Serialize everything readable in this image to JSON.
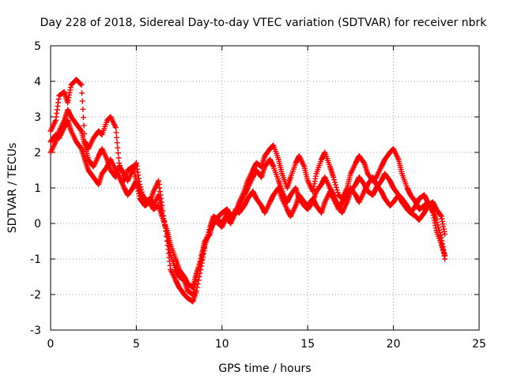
{
  "chart_data": {
    "type": "scatter",
    "title": "Day 228 of 2018, Sidereal Day-to-day VTEC variation (SDTVAR) for receiver nbrk",
    "xlabel": "GPS time / hours",
    "ylabel": "SDTVAR / TECUs",
    "xlim": [
      0,
      25
    ],
    "ylim": [
      -3,
      5
    ],
    "xticks": [
      "0",
      "5",
      "10",
      "15",
      "20",
      "25"
    ],
    "yticks": [
      "-3",
      "-2",
      "-1",
      "0",
      "1",
      "2",
      "3",
      "4",
      "5"
    ],
    "grid": true,
    "marker": "plus",
    "series": [
      {
        "name": "SDTVAR",
        "color": "#ff0000",
        "x": [
          0.0,
          0.3,
          0.5,
          0.8,
          1.0,
          1.2,
          1.5,
          1.8,
          2.0,
          2.2,
          2.5,
          2.8,
          3.0,
          3.3,
          3.5,
          3.8,
          4.0,
          4.3,
          4.5,
          4.8,
          5.0,
          5.2,
          5.5,
          5.8,
          6.0,
          6.3,
          6.5,
          6.8,
          7.0,
          7.3,
          7.5,
          7.8,
          8.0,
          8.3,
          8.5,
          8.8,
          9.0,
          9.3,
          9.5,
          9.8,
          10.0,
          10.3,
          10.5,
          10.8,
          11.0,
          11.3,
          11.5,
          11.8,
          12.0,
          12.3,
          12.5,
          12.8,
          13.0,
          13.3,
          13.5,
          13.8,
          14.0,
          14.3,
          14.5,
          14.8,
          15.0,
          15.3,
          15.5,
          15.8,
          16.0,
          16.3,
          16.5,
          16.8,
          17.0,
          17.3,
          17.5,
          17.8,
          18.0,
          18.3,
          18.5,
          18.8,
          19.0,
          19.3,
          19.5,
          19.8,
          20.0,
          20.3,
          20.5,
          20.8,
          21.0,
          21.3,
          21.5,
          21.8,
          22.0,
          22.3,
          22.5,
          22.8,
          23.0
        ],
        "y": [
          2.6,
          2.9,
          3.6,
          3.7,
          3.4,
          3.9,
          4.05,
          3.9,
          2.3,
          2.1,
          2.4,
          2.6,
          2.5,
          2.9,
          3.0,
          2.7,
          1.7,
          1.2,
          1.5,
          1.6,
          1.2,
          0.7,
          0.5,
          0.6,
          0.9,
          1.2,
          0.5,
          -0.5,
          -1.3,
          -1.6,
          -1.8,
          -2.0,
          -2.1,
          -2.2,
          -1.9,
          -1.2,
          -0.6,
          -0.2,
          0.0,
          0.2,
          0.3,
          0.4,
          0.2,
          0.3,
          0.6,
          0.9,
          1.2,
          1.5,
          1.7,
          1.6,
          1.9,
          2.1,
          2.2,
          1.8,
          1.4,
          1.0,
          1.3,
          1.7,
          1.9,
          1.6,
          1.2,
          0.9,
          1.4,
          1.8,
          2.0,
          1.6,
          1.3,
          0.8,
          0.7,
          1.0,
          1.4,
          1.7,
          1.9,
          1.7,
          1.4,
          1.2,
          1.3,
          1.6,
          1.8,
          2.0,
          2.1,
          1.8,
          1.4,
          1.0,
          0.8,
          0.6,
          0.4,
          0.5,
          0.6,
          0.3,
          -0.2,
          -0.6,
          -0.9
        ]
      },
      {
        "name": "SDTVAR",
        "color": "#ff0000",
        "x": [
          0.0,
          0.3,
          0.5,
          0.8,
          1.0,
          1.2,
          1.5,
          1.8,
          2.0,
          2.2,
          2.5,
          2.8,
          3.0,
          3.3,
          3.5,
          3.8,
          4.0,
          4.3,
          4.5,
          4.8,
          5.0,
          5.2,
          5.5,
          5.8,
          6.0,
          6.3,
          6.5,
          6.8,
          7.0,
          7.3,
          7.5,
          7.8,
          8.0,
          8.3,
          8.5,
          8.8,
          9.0,
          9.3,
          9.5,
          9.8,
          10.0,
          10.3,
          10.5,
          10.8,
          11.0,
          11.3,
          11.5,
          11.8,
          12.0,
          12.3,
          12.5,
          12.8,
          13.0,
          13.3,
          13.5,
          13.8,
          14.0,
          14.3,
          14.5,
          14.8,
          15.0,
          15.3,
          15.5,
          15.8,
          16.0,
          16.3,
          16.5,
          16.8,
          17.0,
          17.3,
          17.5,
          17.8,
          18.0,
          18.3,
          18.5,
          18.8,
          19.0,
          19.3,
          19.5,
          19.8,
          20.0,
          20.3,
          20.5,
          20.8,
          21.0,
          21.3,
          21.5,
          21.8,
          22.0,
          22.3,
          22.5,
          22.8,
          23.0
        ],
        "y": [
          2.0,
          2.3,
          2.6,
          2.9,
          3.2,
          3.0,
          2.8,
          2.6,
          2.2,
          1.8,
          1.6,
          1.9,
          2.1,
          1.8,
          1.5,
          1.3,
          1.6,
          1.4,
          1.2,
          1.5,
          1.7,
          1.1,
          0.6,
          0.7,
          0.5,
          0.8,
          0.3,
          -0.3,
          -0.9,
          -1.3,
          -1.5,
          -1.6,
          -1.9,
          -2.0,
          -1.5,
          -0.9,
          -0.5,
          -0.3,
          0.1,
          0.0,
          -0.1,
          0.2,
          0.0,
          0.3,
          0.5,
          0.8,
          1.0,
          1.3,
          1.5,
          1.3,
          1.6,
          1.8,
          1.6,
          1.2,
          0.9,
          0.6,
          0.8,
          1.0,
          0.7,
          0.5,
          0.4,
          0.6,
          0.9,
          1.1,
          1.3,
          1.0,
          0.8,
          0.5,
          0.3,
          0.6,
          0.9,
          1.1,
          1.3,
          1.1,
          0.9,
          0.8,
          1.0,
          1.2,
          1.4,
          1.2,
          1.0,
          0.8,
          0.6,
          0.4,
          0.3,
          0.2,
          0.1,
          0.3,
          0.5,
          0.6,
          0.4,
          0.2,
          -0.3
        ]
      },
      {
        "name": "SDTVAR",
        "color": "#ff0000",
        "x": [
          0.0,
          0.3,
          0.5,
          0.8,
          1.0,
          1.2,
          1.5,
          1.8,
          2.0,
          2.2,
          2.5,
          2.8,
          3.0,
          3.3,
          3.5,
          3.8,
          4.0,
          4.3,
          4.5,
          4.8,
          5.0,
          5.2,
          5.5,
          5.8,
          6.0,
          6.3,
          6.5,
          6.8,
          7.0,
          7.3,
          7.5,
          7.8,
          8.0,
          8.3,
          8.5,
          8.8,
          9.0,
          9.3,
          9.5,
          9.8,
          10.0,
          10.3,
          10.5,
          10.8,
          11.0,
          11.3,
          11.5,
          11.8,
          12.0,
          12.3,
          12.5,
          12.8,
          13.0,
          13.3,
          13.5,
          13.8,
          14.0,
          14.3,
          14.5,
          14.8,
          15.0,
          15.3,
          15.5,
          15.8,
          16.0,
          16.3,
          16.5,
          16.8,
          17.0,
          17.3,
          17.5,
          17.8,
          18.0,
          18.3,
          18.5,
          18.8,
          19.0,
          19.3,
          19.5,
          19.8,
          20.0,
          20.3,
          20.5,
          20.8,
          21.0,
          21.3,
          21.5,
          21.8,
          22.0,
          22.3,
          22.5,
          22.8,
          23.0
        ],
        "y": [
          2.3,
          2.5,
          2.4,
          2.7,
          2.9,
          2.6,
          2.3,
          2.1,
          1.8,
          1.5,
          1.3,
          1.1,
          1.4,
          1.6,
          1.8,
          1.5,
          1.3,
          1.0,
          0.8,
          1.0,
          1.2,
          0.9,
          0.7,
          0.6,
          0.4,
          0.5,
          0.2,
          -0.2,
          -0.6,
          -1.0,
          -1.3,
          -1.5,
          -1.7,
          -1.8,
          -1.4,
          -1.0,
          -0.6,
          -0.1,
          0.2,
          0.1,
          0.0,
          0.3,
          0.1,
          0.4,
          0.3,
          0.5,
          0.7,
          0.9,
          0.7,
          0.5,
          0.3,
          0.6,
          0.8,
          1.0,
          0.7,
          0.4,
          0.2,
          0.5,
          0.8,
          0.6,
          0.5,
          0.7,
          0.5,
          0.3,
          0.6,
          0.9,
          0.7,
          0.4,
          0.6,
          0.8,
          1.0,
          0.8,
          0.6,
          0.9,
          1.1,
          1.3,
          1.1,
          0.9,
          0.7,
          0.5,
          0.6,
          0.8,
          0.7,
          0.5,
          0.3,
          0.5,
          0.7,
          0.8,
          0.6,
          0.4,
          0.1,
          -0.4,
          -1.0
        ]
      }
    ]
  }
}
